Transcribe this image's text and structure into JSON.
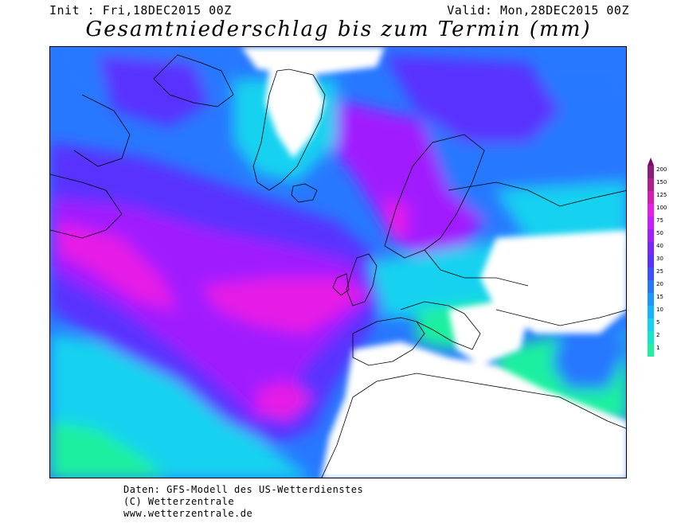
{
  "header": {
    "init": "Init : Fri,18DEC2015 00Z",
    "valid": "Valid: Mon,28DEC2015 00Z",
    "title": "Gesamtniederschlag bis zum Termin (mm)"
  },
  "legend": {
    "levels": [
      {
        "label": "200",
        "color": "#8a1e78"
      },
      {
        "label": "150",
        "color": "#b01e8c"
      },
      {
        "label": "125",
        "color": "#d21eb4"
      },
      {
        "label": "100",
        "color": "#e61ee6"
      },
      {
        "label": "75",
        "color": "#c81eff"
      },
      {
        "label": "50",
        "color": "#a01eff"
      },
      {
        "label": "40",
        "color": "#7828ff"
      },
      {
        "label": "30",
        "color": "#5a32ff"
      },
      {
        "label": "25",
        "color": "#3c50ff"
      },
      {
        "label": "20",
        "color": "#2878ff"
      },
      {
        "label": "15",
        "color": "#1e96ff"
      },
      {
        "label": "10",
        "color": "#14b4ff"
      },
      {
        "label": "5",
        "color": "#14d2f0"
      },
      {
        "label": "2",
        "color": "#14e6c8"
      },
      {
        "label": "1",
        "color": "#1ef0a0"
      }
    ]
  },
  "colors": {
    "none": "#ffffff",
    "light": "#1ef0a0",
    "cyan": "#14d2f0",
    "blue": "#2878ff",
    "indigo": "#5a32ff",
    "violet": "#a01eff",
    "magenta": "#e61ee6",
    "deep": "#b01e8c"
  },
  "footer": {
    "line1": "Daten: GFS-Modell des US-Wetterdienstes",
    "line2": "(C) Wetterzentrale",
    "line3": "www.wetterzentrale.de"
  }
}
